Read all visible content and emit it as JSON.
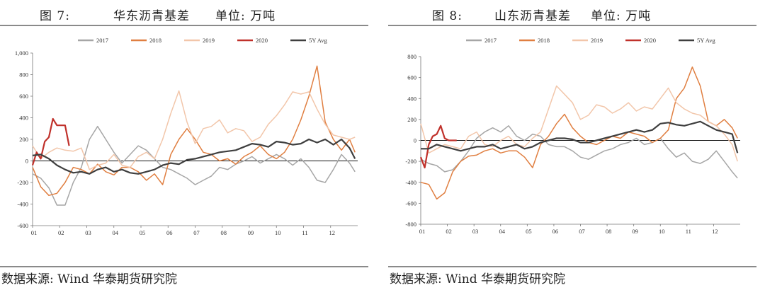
{
  "panels": [
    {
      "figure_label": "图 7:",
      "title": "华东沥青基差",
      "unit": "单位: 万吨",
      "source": "数据来源: Wind  华泰期货研究院"
    },
    {
      "figure_label": "图 8:",
      "title": "山东沥青基差",
      "unit": "单位: 万吨",
      "source": "数据来源: Wind  华泰期货研究院"
    }
  ],
  "chart_data": [
    {
      "type": "line",
      "title": "华东沥青基差",
      "x_ticks": [
        "01",
        "02",
        "03",
        "04",
        "05",
        "06",
        "07",
        "08",
        "09",
        "10",
        "11",
        "12"
      ],
      "ylim": [
        -600,
        1000
      ],
      "y_ticks": [
        "-600",
        "-400",
        "-200",
        "0",
        "200",
        "400",
        "600",
        "800",
        "1,000"
      ],
      "y_tick_values": [
        -600,
        -400,
        -200,
        0,
        200,
        400,
        600,
        800,
        1000
      ],
      "legend_position": "top",
      "series": [
        {
          "name": "2017",
          "color": "#a6a6a6",
          "x": [
            1,
            1.3,
            1.6,
            1.9,
            2.2,
            2.5,
            2.8,
            3.1,
            3.4,
            3.7,
            4,
            4.3,
            4.6,
            4.9,
            5.2,
            5.5,
            5.8,
            6.1,
            6.4,
            6.7,
            7,
            7.3,
            7.6,
            7.9,
            8.2,
            8.5,
            8.8,
            9.1,
            9.4,
            9.7,
            10,
            10.3,
            10.6,
            10.9,
            11.2,
            11.5,
            11.8,
            12.1,
            12.4,
            12.7,
            12.9
          ],
          "y": [
            -120,
            -160,
            -250,
            -410,
            -410,
            -200,
            -60,
            200,
            320,
            200,
            80,
            -20,
            60,
            140,
            100,
            20,
            -60,
            -80,
            -120,
            -160,
            -220,
            -180,
            -140,
            -60,
            -80,
            -30,
            0,
            40,
            -20,
            20,
            60,
            20,
            -40,
            20,
            -60,
            -180,
            -200,
            -80,
            60,
            -20,
            -100
          ]
        },
        {
          "name": "2018",
          "color": "#e07f41",
          "x": [
            1,
            1.3,
            1.6,
            1.9,
            2.2,
            2.5,
            2.8,
            3.1,
            3.4,
            3.7,
            4,
            4.3,
            4.6,
            4.9,
            5.2,
            5.5,
            5.8,
            6.1,
            6.4,
            6.7,
            7,
            7.3,
            7.6,
            7.9,
            8.2,
            8.5,
            8.8,
            9.1,
            9.4,
            9.7,
            10,
            10.3,
            10.6,
            10.9,
            11.2,
            11.5,
            11.8,
            12.1,
            12.4,
            12.7,
            12.9
          ],
          "y": [
            -60,
            -240,
            -320,
            -300,
            -200,
            -60,
            -80,
            -120,
            -30,
            -100,
            -130,
            -60,
            -60,
            -100,
            -180,
            -120,
            -220,
            60,
            200,
            300,
            200,
            80,
            60,
            0,
            20,
            -30,
            40,
            80,
            140,
            60,
            20,
            80,
            200,
            380,
            600,
            880,
            360,
            200,
            100,
            200,
            80
          ]
        },
        {
          "name": "2019",
          "color": "#f2c6aa",
          "x": [
            1,
            1.3,
            1.6,
            1.9,
            2.2,
            2.5,
            2.8,
            3.1,
            3.4,
            3.7,
            4,
            4.3,
            4.6,
            4.9,
            5.2,
            5.5,
            5.8,
            6.1,
            6.4,
            6.7,
            7,
            7.3,
            7.6,
            7.9,
            8.2,
            8.5,
            8.8,
            9.1,
            9.4,
            9.7,
            10,
            10.3,
            10.6,
            10.9,
            11.2,
            11.5,
            11.8,
            12.1,
            12.4,
            12.7,
            12.9
          ],
          "y": [
            140,
            20,
            80,
            120,
            100,
            90,
            120,
            -80,
            -40,
            -20,
            60,
            -40,
            -60,
            40,
            80,
            20,
            200,
            440,
            650,
            360,
            160,
            300,
            320,
            380,
            260,
            300,
            280,
            180,
            220,
            340,
            420,
            520,
            640,
            620,
            640,
            480,
            340,
            240,
            220,
            200,
            220
          ]
        },
        {
          "name": "2020",
          "color": "#c0312b",
          "x": [
            1,
            1.15,
            1.3,
            1.45,
            1.6,
            1.75,
            1.9,
            2.05,
            2.2,
            2.35
          ],
          "y": [
            -40,
            80,
            20,
            180,
            220,
            390,
            330,
            330,
            330,
            140
          ]
        },
        {
          "name": "5Y Avg",
          "color": "#3f3f3f",
          "x": [
            1,
            1.3,
            1.6,
            1.9,
            2.2,
            2.5,
            2.8,
            3.1,
            3.4,
            3.7,
            4,
            4.3,
            4.6,
            4.9,
            5.2,
            5.5,
            5.8,
            6.1,
            6.4,
            6.7,
            7,
            7.3,
            7.6,
            7.9,
            8.2,
            8.5,
            8.8,
            9.1,
            9.4,
            9.7,
            10,
            10.3,
            10.6,
            10.9,
            11.2,
            11.5,
            11.8,
            12.1,
            12.4,
            12.7,
            12.9
          ],
          "y": [
            50,
            60,
            20,
            -40,
            -80,
            -110,
            -100,
            -120,
            -80,
            -60,
            -100,
            -80,
            -110,
            -120,
            -100,
            -80,
            -40,
            -20,
            -30,
            10,
            20,
            40,
            60,
            80,
            90,
            100,
            130,
            160,
            150,
            130,
            180,
            170,
            150,
            160,
            200,
            170,
            200,
            150,
            200,
            120,
            20
          ]
        }
      ]
    },
    {
      "type": "line",
      "title": "山东沥青基差",
      "x_ticks": [
        "01",
        "02",
        "03",
        "04",
        "05",
        "06",
        "07",
        "08",
        "09",
        "10",
        "11",
        "12"
      ],
      "ylim": [
        -800,
        800
      ],
      "y_ticks": [
        "-800",
        "-600",
        "-400",
        "-200",
        "0",
        "200",
        "400",
        "600",
        "800"
      ],
      "y_tick_values": [
        -800,
        -600,
        -400,
        -200,
        0,
        200,
        400,
        600,
        800
      ],
      "legend_position": "top",
      "series": [
        {
          "name": "2017",
          "color": "#a6a6a6",
          "x": [
            1,
            1.3,
            1.6,
            1.9,
            2.2,
            2.5,
            2.8,
            3.1,
            3.4,
            3.7,
            4,
            4.3,
            4.6,
            4.9,
            5.2,
            5.5,
            5.8,
            6.1,
            6.4,
            6.7,
            7,
            7.3,
            7.6,
            7.9,
            8.2,
            8.5,
            8.8,
            9.1,
            9.4,
            9.7,
            10,
            10.3,
            10.6,
            10.9,
            11.2,
            11.5,
            11.8,
            12.1,
            12.4,
            12.7,
            12.9
          ],
          "y": [
            -180,
            -220,
            -240,
            -300,
            -280,
            -200,
            -100,
            20,
            80,
            120,
            80,
            140,
            40,
            0,
            60,
            40,
            -40,
            -60,
            -60,
            -100,
            -160,
            -180,
            -140,
            -100,
            -80,
            -40,
            -20,
            20,
            -40,
            -20,
            20,
            -80,
            -160,
            -120,
            -200,
            -220,
            -180,
            -100,
            -200,
            -300,
            -360
          ]
        },
        {
          "name": "2018",
          "color": "#e07f41",
          "x": [
            1,
            1.3,
            1.6,
            1.9,
            2.2,
            2.5,
            2.8,
            3.1,
            3.4,
            3.7,
            4,
            4.3,
            4.6,
            4.9,
            5.2,
            5.5,
            5.8,
            6.1,
            6.4,
            6.7,
            7,
            7.3,
            7.6,
            7.9,
            8.2,
            8.5,
            8.8,
            9.1,
            9.4,
            9.7,
            10,
            10.3,
            10.6,
            10.9,
            11.2,
            11.5,
            11.8,
            12.1,
            12.4,
            12.7,
            12.9
          ],
          "y": [
            -400,
            -420,
            -560,
            -500,
            -300,
            -200,
            -150,
            -140,
            -100,
            -80,
            -120,
            -100,
            -100,
            -160,
            -260,
            -40,
            40,
            160,
            250,
            120,
            40,
            -20,
            -40,
            0,
            40,
            20,
            80,
            60,
            40,
            -20,
            20,
            100,
            400,
            500,
            700,
            520,
            180,
            140,
            200,
            120,
            20
          ]
        },
        {
          "name": "2019",
          "color": "#f2c6aa",
          "x": [
            1,
            1.3,
            1.6,
            1.9,
            2.2,
            2.5,
            2.8,
            3.1,
            3.4,
            3.7,
            4,
            4.3,
            4.6,
            4.9,
            5.2,
            5.5,
            5.8,
            6.1,
            6.4,
            6.7,
            7,
            7.3,
            7.6,
            7.9,
            8.2,
            8.5,
            8.8,
            9.1,
            9.4,
            9.7,
            10,
            10.3,
            10.6,
            10.9,
            11.2,
            11.5,
            11.8,
            12.1,
            12.4,
            12.7,
            12.9
          ],
          "y": [
            160,
            -120,
            -80,
            -40,
            -60,
            -80,
            40,
            80,
            -40,
            -60,
            0,
            40,
            -40,
            -60,
            20,
            80,
            300,
            520,
            440,
            360,
            200,
            240,
            340,
            320,
            260,
            300,
            360,
            280,
            320,
            300,
            400,
            500,
            360,
            300,
            260,
            240,
            180,
            140,
            60,
            -40,
            -200
          ]
        },
        {
          "name": "2020",
          "color": "#c0312b",
          "x": [
            1,
            1.15,
            1.3,
            1.45,
            1.6,
            1.75,
            1.9,
            2.05,
            2.2,
            2.35
          ],
          "y": [
            -160,
            -260,
            -40,
            40,
            60,
            140,
            20,
            0,
            0,
            0
          ]
        },
        {
          "name": "5Y Avg",
          "color": "#3f3f3f",
          "x": [
            1,
            1.3,
            1.6,
            1.9,
            2.2,
            2.5,
            2.8,
            3.1,
            3.4,
            3.7,
            4,
            4.3,
            4.6,
            4.9,
            5.2,
            5.5,
            5.8,
            6.1,
            6.4,
            6.7,
            7,
            7.3,
            7.6,
            7.9,
            8.2,
            8.5,
            8.8,
            9.1,
            9.4,
            9.7,
            10,
            10.3,
            10.6,
            10.9,
            11.2,
            11.5,
            11.8,
            12.1,
            12.4,
            12.7,
            12.9
          ],
          "y": [
            -80,
            -80,
            -40,
            -60,
            -80,
            -100,
            -80,
            -60,
            -60,
            -40,
            -80,
            -60,
            -40,
            -80,
            -60,
            -20,
            0,
            20,
            20,
            10,
            -20,
            -20,
            0,
            20,
            40,
            60,
            80,
            100,
            80,
            100,
            160,
            170,
            150,
            140,
            160,
            180,
            140,
            100,
            80,
            60,
            -120
          ]
        }
      ]
    }
  ]
}
